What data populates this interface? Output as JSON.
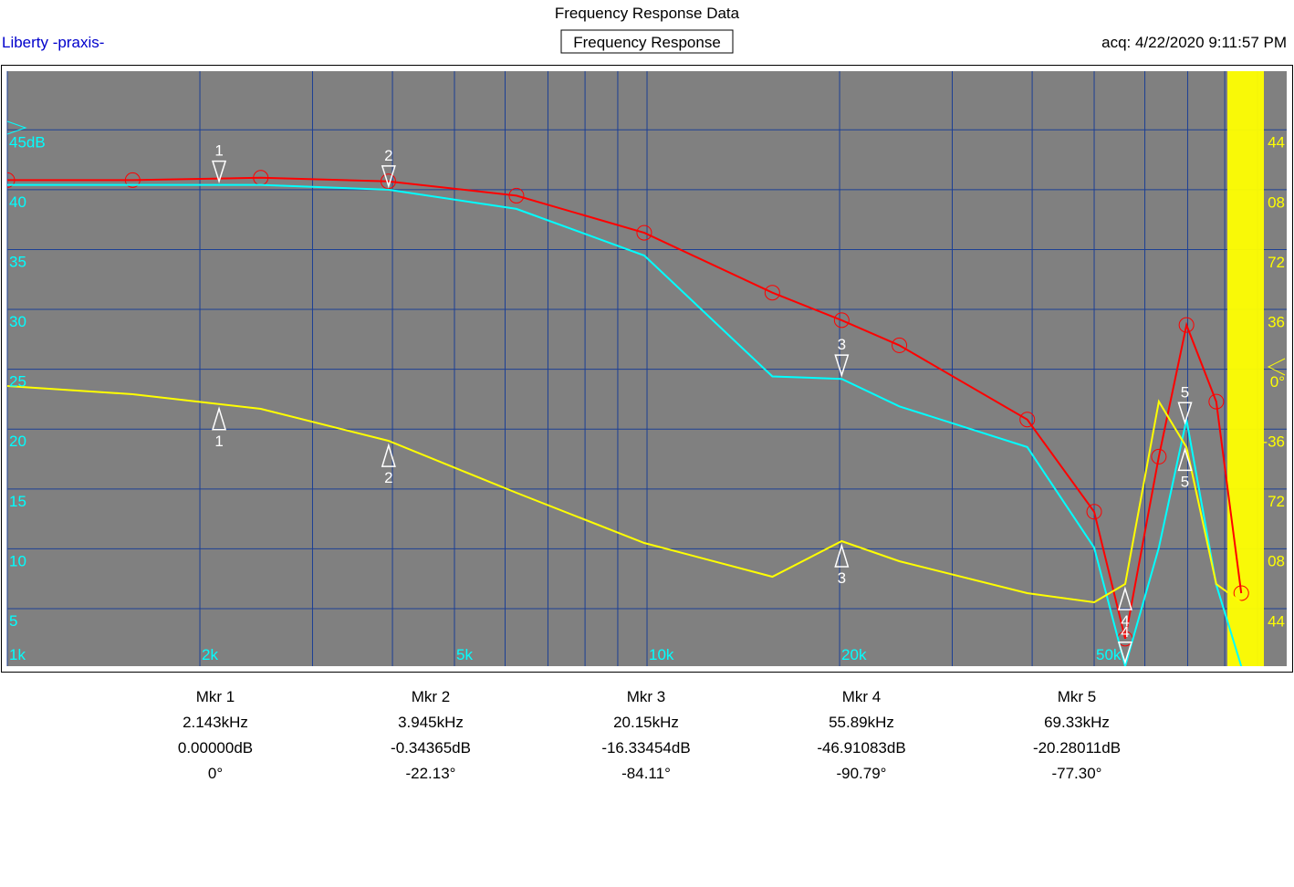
{
  "header": {
    "title": "Frequency Response Data",
    "left": "Liberty -praxis-",
    "center": "Frequency Response",
    "right": "acq: 4/22/2020 9:11:57 PM"
  },
  "chart_data": {
    "type": "line",
    "xscale": "log",
    "grid": true,
    "x": [
      1000,
      1570,
      2490,
      3940,
      6250,
      9900,
      15700,
      20150,
      24800,
      39300,
      50000,
      55900,
      63100,
      69700,
      77600,
      84900
    ],
    "series": [
      {
        "color": "#ff0000",
        "marker": "circle",
        "values": [
          40.8,
          40.8,
          41.0,
          40.7,
          39.5,
          36.4,
          31.4,
          29.1,
          27.0,
          20.8,
          13.1,
          2.5,
          17.7,
          28.7,
          22.3,
          6.3
        ]
      },
      {
        "color": "#00ffff",
        "values": [
          40.4,
          40.4,
          40.4,
          40.0,
          38.4,
          34.5,
          24.4,
          24.2,
          21.9,
          18.5,
          10.1,
          0.2,
          10.1,
          20.8,
          7.0,
          0.2
        ]
      },
      {
        "color": "#ffff00",
        "axis": "y2",
        "values": [
          -9.9,
          -14.8,
          -23.6,
          -42.8,
          -74.1,
          -104.3,
          -124.6,
          -103.2,
          -115.3,
          -134.5,
          -140,
          -129,
          -19.2,
          -46.7,
          -129,
          -140
        ]
      }
    ],
    "xlim": [
      1000,
      92100
    ],
    "xticks": [
      {
        "value": 1000,
        "label": "1k"
      },
      {
        "value": 2000,
        "label": "2k"
      },
      {
        "value": 5000,
        "label": "5k"
      },
      {
        "value": 10000,
        "label": "10k"
      },
      {
        "value": 20000,
        "label": "20k"
      },
      {
        "value": 50000,
        "label": "50k"
      }
    ],
    "xminor": [
      3000,
      4000,
      6000,
      7000,
      8000,
      9000,
      30000,
      40000,
      60000,
      70000,
      80000,
      90000
    ],
    "ylim": [
      0.2,
      49.9
    ],
    "yticks": [
      {
        "value": 45,
        "label": "45dB"
      },
      40,
      35,
      30,
      25,
      20,
      15,
      10,
      5
    ],
    "y2lim": [
      -178.4,
      179.5
    ],
    "y2ticks": [
      {
        "value": 144,
        "label": "44"
      },
      {
        "value": 108,
        "label": "08"
      },
      72,
      36,
      {
        "value": 0,
        "label": "0°"
      },
      -36,
      {
        "value": -72,
        "label": "72"
      },
      {
        "value": -108,
        "label": "08"
      },
      {
        "value": -144,
        "label": "44"
      }
    ],
    "markers": {
      "ids": [
        "1",
        "2",
        "3",
        "4",
        "5"
      ],
      "freq": [
        2143,
        3945,
        20150,
        55890,
        69330
      ]
    }
  },
  "table": {
    "names": [
      "Mkr 1",
      "Mkr 2",
      "Mkr 3",
      "Mkr 4",
      "Mkr 5"
    ],
    "freq_labels": [
      "2.143kHz",
      "3.945kHz",
      "20.15kHz",
      "55.89kHz",
      "69.33kHz"
    ],
    "mag_labels": [
      "0.00000dB",
      "-0.34365dB",
      "-16.33454dB",
      "-46.91083dB",
      "-20.28011dB"
    ],
    "phase_labels": [
      "0°",
      "-22.13°",
      "-84.11°",
      "-90.79°",
      "-77.30°"
    ]
  }
}
